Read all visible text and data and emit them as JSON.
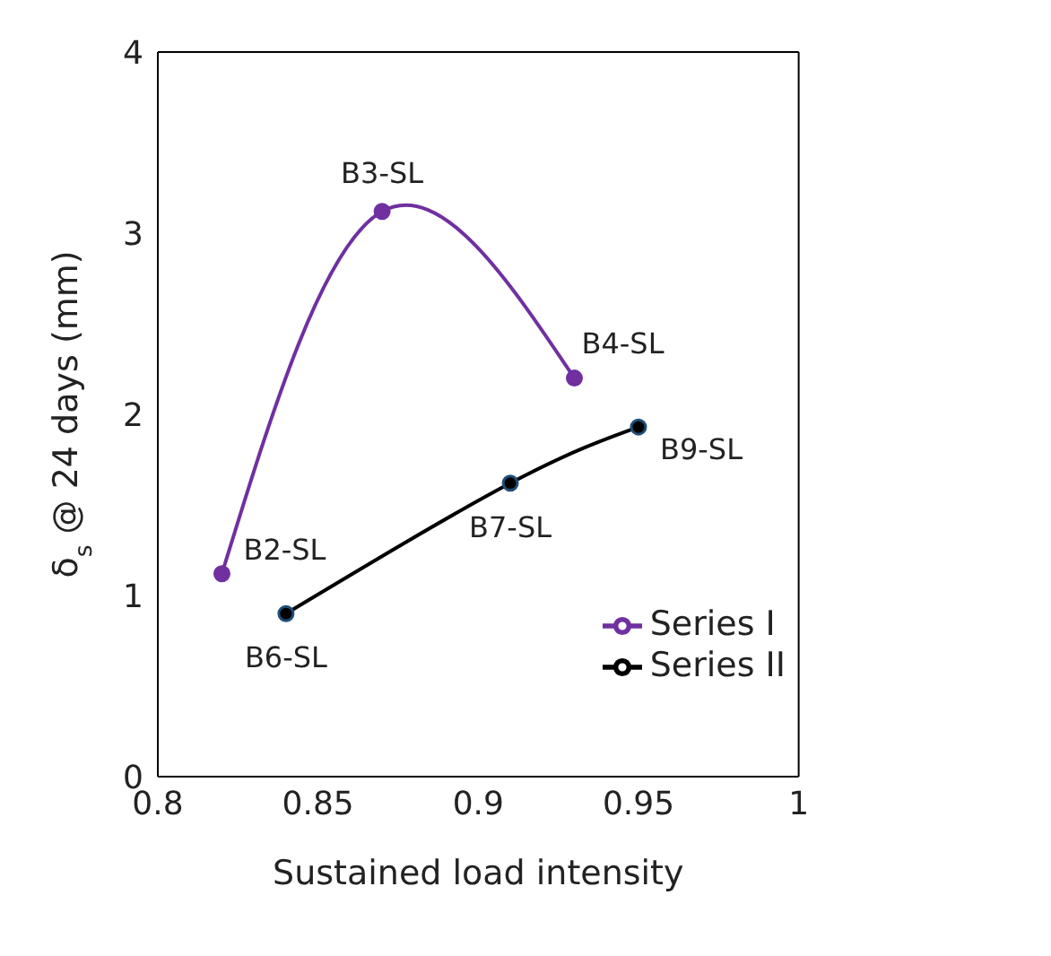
{
  "chart_data": {
    "type": "line",
    "xlabel": "Sustained load intensity",
    "ylabel": "δ$_{s}$ @ 24 days (mm)",
    "xlim": [
      0.8,
      1
    ],
    "xticks": [
      0.8,
      0.85,
      0.9,
      0.95,
      1
    ],
    "ylim": [
      0,
      4
    ],
    "yticks": [
      0,
      1,
      2,
      3,
      4
    ],
    "grid": false,
    "legend": "bottom right",
    "marker": "circle",
    "line_style": "solid",
    "series": [
      {
        "name": "Series I",
        "color": "#7030a0",
        "x": [
          0.82,
          0.87,
          0.93
        ],
        "values": [
          1.12,
          3.12,
          2.2
        ]
      },
      {
        "name": "Series II",
        "color": "#000000",
        "x": [
          0.84,
          0.91,
          0.95
        ],
        "values": [
          0.9,
          1.62,
          1.93
        ]
      }
    ],
    "annotations": [
      {
        "text": "B2-SL",
        "x": 0.82,
        "y": 1.12
      },
      {
        "text": "B3-SL",
        "x": 0.87,
        "y": 3.12
      },
      {
        "text": "B4-SL",
        "x": 0.93,
        "y": 2.2
      },
      {
        "text": "B6-SL",
        "x": 0.84,
        "y": 0.9
      },
      {
        "text": "B7-SL",
        "x": 0.91,
        "y": 1.62
      },
      {
        "text": "B9-SL",
        "x": 0.95,
        "y": 1.93
      }
    ]
  }
}
